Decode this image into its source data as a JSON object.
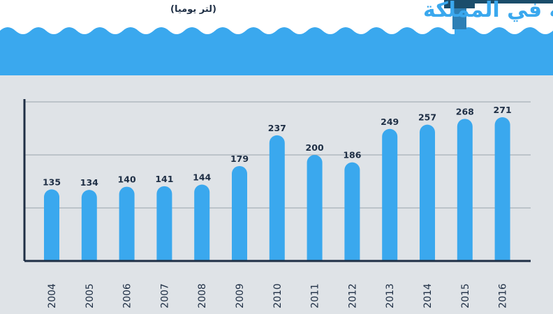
{
  "header": {
    "title": "المستهلكة في المملكة",
    "subtitle": "(لتر يوميا)"
  },
  "colors": {
    "background": "#dfe3e7",
    "header_band": "#3aa8ee",
    "bar": "#3aa8ee",
    "text": "#1f2f45"
  },
  "chart_data": {
    "type": "bar",
    "categories": [
      "2004",
      "2005",
      "2006",
      "2007",
      "2008",
      "2009",
      "2010",
      "2011",
      "2012",
      "2013",
      "2014",
      "2015",
      "2016"
    ],
    "values": [
      135,
      134,
      140,
      141,
      144,
      179,
      237,
      200,
      186,
      249,
      257,
      268,
      271
    ],
    "title": "",
    "xlabel": "",
    "ylabel": "",
    "ylim": [
      0,
      300
    ],
    "grid": true,
    "data_labels": true
  }
}
